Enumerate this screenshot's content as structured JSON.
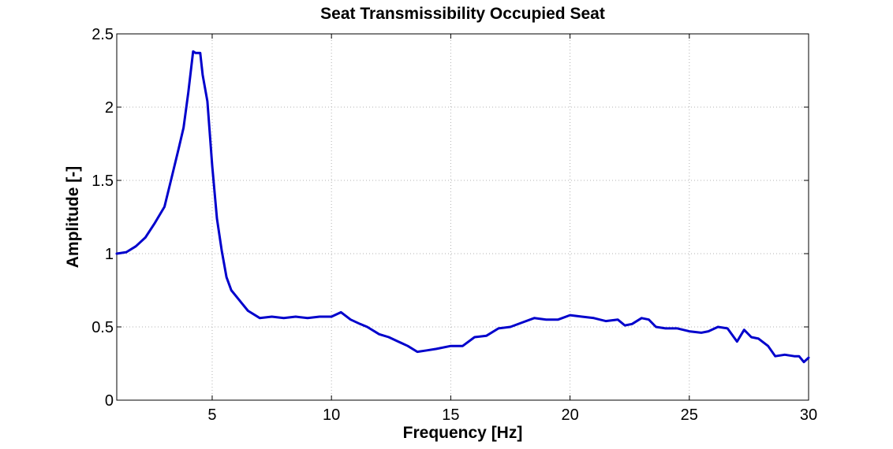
{
  "chart_data": {
    "type": "line",
    "title": "Seat Transmissibility Occupied Seat",
    "xlabel": "Frequency [Hz]",
    "ylabel": "Amplitude [-]",
    "xlim": [
      1,
      30
    ],
    "ylim": [
      0,
      2.5
    ],
    "xticks": [
      5,
      10,
      15,
      20,
      25,
      30
    ],
    "yticks": [
      0,
      0.5,
      1,
      1.5,
      2,
      2.5
    ],
    "xtick_labels": [
      "5",
      "10",
      "15",
      "20",
      "25",
      "30"
    ],
    "ytick_labels": [
      "0",
      "0.5",
      "1",
      "1.5",
      "2",
      "2.5"
    ],
    "grid": true,
    "color": "#0000CC",
    "series": [
      {
        "x": [
          1.0,
          1.4,
          1.8,
          2.2,
          2.6,
          3.0,
          3.3,
          3.6,
          3.8,
          4.0,
          4.2,
          4.3,
          4.5,
          4.6,
          4.8,
          5.0,
          5.2,
          5.4,
          5.6,
          5.8,
          6.2,
          6.5,
          7.0,
          7.5,
          8.0,
          8.5,
          9.0,
          9.5,
          10.0,
          10.4,
          10.8,
          11.2,
          11.5,
          12.0,
          12.4,
          12.8,
          13.2,
          13.6,
          14.0,
          14.4,
          15.0,
          15.5,
          16.0,
          16.5,
          17.0,
          17.5,
          18.0,
          18.5,
          19.0,
          19.5,
          20.0,
          20.5,
          21.0,
          21.5,
          22.0,
          22.3,
          22.6,
          23.0,
          23.3,
          23.6,
          24.0,
          24.5,
          25.0,
          25.5,
          25.8,
          26.2,
          26.6,
          27.0,
          27.3,
          27.6,
          27.9,
          28.3,
          28.6,
          29.0,
          29.4,
          29.6,
          29.8,
          30.0
        ],
        "y": [
          1.0,
          1.01,
          1.05,
          1.11,
          1.21,
          1.32,
          1.52,
          1.72,
          1.86,
          2.1,
          2.38,
          2.37,
          2.37,
          2.22,
          2.04,
          1.6,
          1.24,
          1.02,
          0.84,
          0.75,
          0.67,
          0.61,
          0.56,
          0.57,
          0.56,
          0.57,
          0.56,
          0.57,
          0.57,
          0.6,
          0.55,
          0.52,
          0.5,
          0.45,
          0.43,
          0.4,
          0.37,
          0.33,
          0.34,
          0.35,
          0.37,
          0.37,
          0.43,
          0.44,
          0.49,
          0.5,
          0.53,
          0.56,
          0.55,
          0.55,
          0.58,
          0.57,
          0.56,
          0.54,
          0.55,
          0.51,
          0.52,
          0.56,
          0.55,
          0.5,
          0.49,
          0.49,
          0.47,
          0.46,
          0.47,
          0.5,
          0.49,
          0.4,
          0.48,
          0.43,
          0.42,
          0.37,
          0.3,
          0.31,
          0.3,
          0.3,
          0.26,
          0.29
        ]
      }
    ]
  }
}
